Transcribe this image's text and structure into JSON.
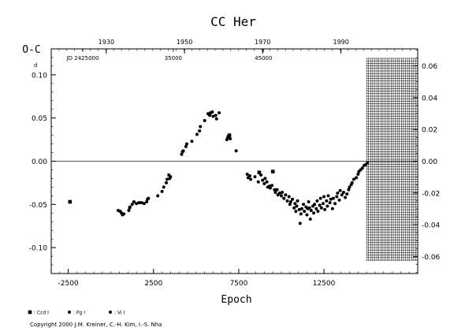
{
  "chart_data": {
    "type": "scatter",
    "title": "CC Her",
    "ylabel": "O-C",
    "ylabel_unit": "d",
    "xlabel": "Epoch",
    "xlim": [
      -3500,
      18000
    ],
    "ylim": [
      -0.13,
      0.13
    ],
    "right_ylim": [
      -0.0707,
      0.0707
    ],
    "x_ticks": [
      -2500,
      2500,
      7500,
      12500
    ],
    "x_tick_labels": [
      "-2500",
      "2500",
      "7500",
      "12500"
    ],
    "y_ticks": [
      -0.1,
      -0.05,
      0.0,
      0.05,
      0.1
    ],
    "y_tick_labels": [
      "-0.10",
      "-0.05",
      "0.00",
      "0.05",
      "0.10"
    ],
    "right_ticks": [
      -0.06,
      -0.04,
      -0.02,
      0.0,
      0.02,
      0.04,
      0.06
    ],
    "right_tick_labels": [
      "-0.06",
      "-0.04",
      "-0.02",
      "0.00",
      "0.02",
      "0.04",
      "0.06"
    ],
    "top_year_ticks": [
      1930,
      1950,
      1970,
      1990
    ],
    "top_year_epochs": [
      -270,
      4320,
      8900,
      13500
    ],
    "top_year_labels": [
      "1930",
      "1950",
      "1970",
      "1990"
    ],
    "jd_ticks": [
      25000,
      35000,
      45000
    ],
    "jd_epochs": [
      -1650,
      3660,
      8950
    ],
    "jd_labels": [
      "JD 2425000",
      "35000",
      "45000"
    ],
    "hatched_region": {
      "x_from": 15000,
      "x_to": 18000
    },
    "zero_line": true,
    "series": [
      {
        "name": ": Ccd I",
        "marker": "square",
        "points": [
          [
            -2400,
            -0.047
          ],
          [
            6900,
            0.028
          ],
          [
            6950,
            0.03
          ],
          [
            8700,
            -0.013
          ],
          [
            9500,
            -0.012
          ]
        ]
      },
      {
        "name": ": Pg I",
        "marker": "square-small",
        "points": [
          [
            550,
            -0.058
          ],
          [
            1100,
            -0.054
          ],
          [
            1800,
            -0.048
          ],
          [
            2100,
            -0.047
          ],
          [
            3400,
            -0.016
          ],
          [
            4250,
            0.012
          ],
          [
            5850,
            0.056
          ]
        ]
      },
      {
        "name": ": Vi I",
        "marker": "circle",
        "points": [
          [
            430,
            -0.057
          ],
          [
            620,
            -0.06
          ],
          [
            680,
            -0.062
          ],
          [
            760,
            -0.061
          ],
          [
            1050,
            -0.057
          ],
          [
            1120,
            -0.053
          ],
          [
            1250,
            -0.05
          ],
          [
            1350,
            -0.047
          ],
          [
            1500,
            -0.049
          ],
          [
            1650,
            -0.048
          ],
          [
            1950,
            -0.049
          ],
          [
            2150,
            -0.044
          ],
          [
            2200,
            -0.043
          ],
          [
            2750,
            -0.04
          ],
          [
            3000,
            -0.035
          ],
          [
            3100,
            -0.03
          ],
          [
            3250,
            -0.025
          ],
          [
            3300,
            -0.021
          ],
          [
            3450,
            -0.02
          ],
          [
            3500,
            -0.018
          ],
          [
            4150,
            0.008
          ],
          [
            4200,
            0.011
          ],
          [
            4400,
            0.017
          ],
          [
            4450,
            0.02
          ],
          [
            4750,
            0.023
          ],
          [
            5050,
            0.031
          ],
          [
            5200,
            0.035
          ],
          [
            5250,
            0.04
          ],
          [
            5500,
            0.047
          ],
          [
            5700,
            0.055
          ],
          [
            5800,
            0.053
          ],
          [
            5950,
            0.057
          ],
          [
            6000,
            0.052
          ],
          [
            6150,
            0.053
          ],
          [
            6200,
            0.049
          ],
          [
            6350,
            0.056
          ],
          [
            6800,
            0.025
          ],
          [
            6850,
            0.027
          ],
          [
            7000,
            0.026
          ],
          [
            7350,
            0.012
          ],
          [
            8000,
            -0.015
          ],
          [
            8050,
            -0.019
          ],
          [
            8150,
            -0.017
          ],
          [
            8200,
            -0.021
          ],
          [
            8450,
            -0.018
          ],
          [
            8650,
            -0.024
          ],
          [
            8800,
            -0.016
          ],
          [
            8900,
            -0.022
          ],
          [
            9000,
            -0.026
          ],
          [
            9050,
            -0.02
          ],
          [
            9150,
            -0.024
          ],
          [
            9200,
            -0.03
          ],
          [
            9300,
            -0.029
          ],
          [
            9350,
            -0.031
          ],
          [
            9450,
            -0.028
          ],
          [
            9600,
            -0.033
          ],
          [
            9650,
            -0.036
          ],
          [
            9750,
            -0.033
          ],
          [
            9800,
            -0.039
          ],
          [
            9900,
            -0.037
          ],
          [
            10000,
            -0.04
          ],
          [
            10050,
            -0.036
          ],
          [
            10150,
            -0.043
          ],
          [
            10250,
            -0.039
          ],
          [
            10350,
            -0.046
          ],
          [
            10450,
            -0.041
          ],
          [
            10500,
            -0.05
          ],
          [
            10550,
            -0.047
          ],
          [
            10650,
            -0.044
          ],
          [
            10750,
            -0.054
          ],
          [
            10800,
            -0.049
          ],
          [
            10850,
            -0.058
          ],
          [
            10900,
            -0.052
          ],
          [
            10950,
            -0.046
          ],
          [
            11050,
            -0.056
          ],
          [
            11100,
            -0.072
          ],
          [
            11150,
            -0.061
          ],
          [
            11200,
            -0.055
          ],
          [
            11300,
            -0.05
          ],
          [
            11350,
            -0.058
          ],
          [
            11450,
            -0.053
          ],
          [
            11500,
            -0.062
          ],
          [
            11550,
            -0.055
          ],
          [
            11600,
            -0.047
          ],
          [
            11650,
            -0.054
          ],
          [
            11700,
            -0.067
          ],
          [
            11750,
            -0.057
          ],
          [
            11850,
            -0.052
          ],
          [
            11900,
            -0.06
          ],
          [
            11950,
            -0.05
          ],
          [
            12050,
            -0.055
          ],
          [
            12100,
            -0.046
          ],
          [
            12150,
            -0.058
          ],
          [
            12250,
            -0.051
          ],
          [
            12300,
            -0.043
          ],
          [
            12350,
            -0.054
          ],
          [
            12450,
            -0.049
          ],
          [
            12500,
            -0.041
          ],
          [
            12550,
            -0.056
          ],
          [
            12650,
            -0.046
          ],
          [
            12700,
            -0.052
          ],
          [
            12750,
            -0.04
          ],
          [
            12850,
            -0.048
          ],
          [
            12900,
            -0.044
          ],
          [
            13000,
            -0.055
          ],
          [
            13050,
            -0.043
          ],
          [
            13150,
            -0.049
          ],
          [
            13250,
            -0.041
          ],
          [
            13300,
            -0.037
          ],
          [
            13400,
            -0.045
          ],
          [
            13450,
            -0.034
          ],
          [
            13550,
            -0.039
          ],
          [
            13650,
            -0.036
          ],
          [
            13750,
            -0.042
          ],
          [
            13850,
            -0.038
          ],
          [
            13950,
            -0.033
          ],
          [
            14000,
            -0.03
          ],
          [
            14100,
            -0.027
          ],
          [
            14150,
            -0.025
          ],
          [
            14250,
            -0.021
          ],
          [
            14400,
            -0.019
          ],
          [
            14500,
            -0.015
          ],
          [
            14550,
            -0.012
          ],
          [
            14650,
            -0.01
          ],
          [
            14750,
            -0.008
          ],
          [
            14850,
            -0.005
          ],
          [
            14950,
            -0.004
          ],
          [
            15050,
            -0.002
          ]
        ]
      }
    ]
  },
  "copyright": "Copyright 2000 J.M. Kreiner, C.-H. Kim, I.-S. Nha"
}
